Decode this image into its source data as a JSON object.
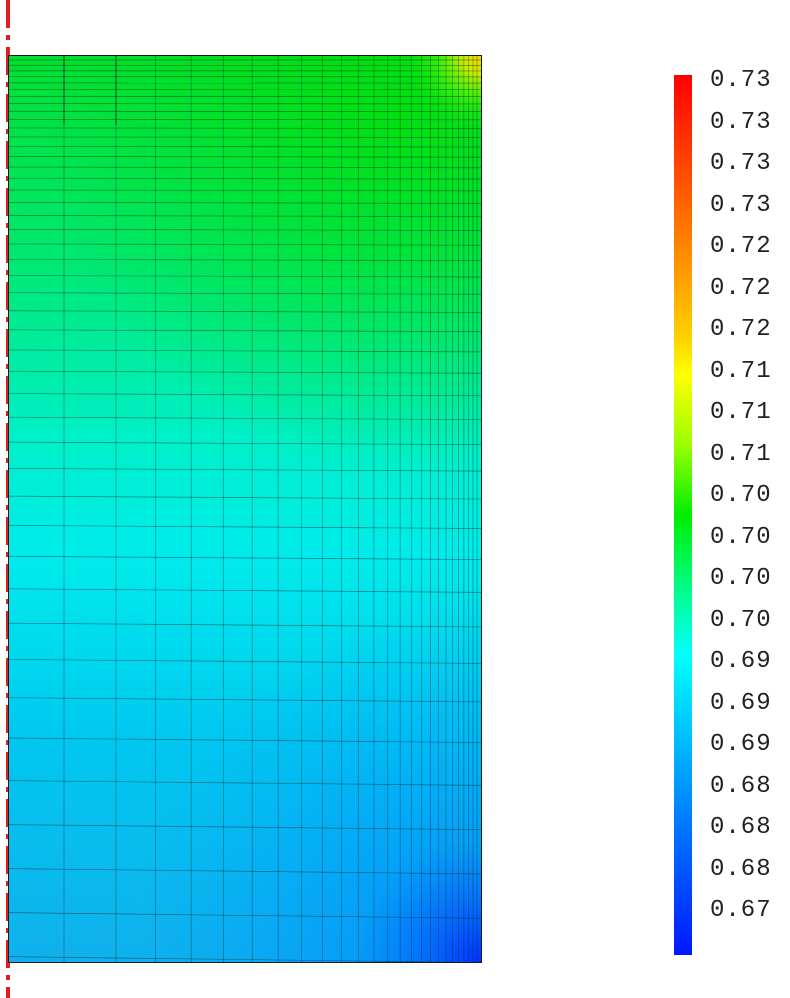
{
  "figure": {
    "colormap": "rainbow (blue-cyan-green-yellow-red)",
    "colors": {
      "symmetry_axis": "#e02020",
      "mesh_lines": "#1a1a1a",
      "high": "#ff0000",
      "low": "#0018ff"
    }
  },
  "colorbar": {
    "labels": [
      "0.73",
      "0.73",
      "0.73",
      "0.73",
      "0.72",
      "0.72",
      "0.72",
      "0.71",
      "0.71",
      "0.71",
      "0.70",
      "0.70",
      "0.70",
      "0.70",
      "0.69",
      "0.69",
      "0.69",
      "0.68",
      "0.68",
      "0.68",
      "0.67"
    ]
  }
}
